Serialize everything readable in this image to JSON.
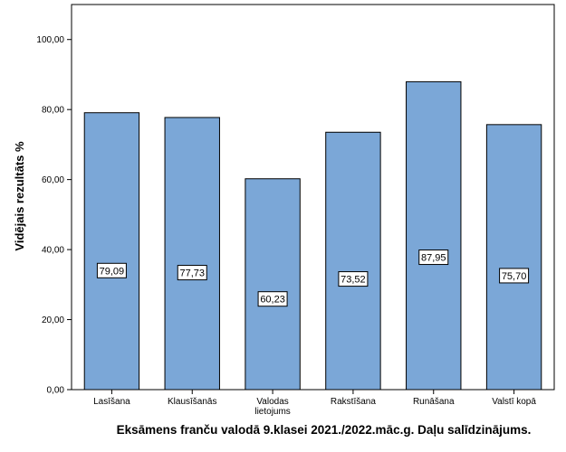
{
  "chart_data": {
    "type": "bar",
    "categories": [
      [
        "Lasīšana"
      ],
      [
        "Klausīšanās"
      ],
      [
        "Valodas",
        "lietojums"
      ],
      [
        "Rakstīšana"
      ],
      [
        "Runāšana"
      ],
      [
        "Valstī kopā"
      ]
    ],
    "values": [
      79.09,
      77.73,
      60.23,
      73.52,
      87.95,
      75.7
    ],
    "data_labels": [
      "79,09",
      "77,73",
      "60,23",
      "73,52",
      "87,95",
      "75,70"
    ],
    "xlabel": "Eksāmens franču valodā 9.klasei 2021./2022.māc.g. Daļu salīdzinājums.",
    "ylabel": "Vidējais rezultāts %",
    "ylim": [
      0,
      110
    ],
    "yticks": [
      0,
      20,
      40,
      60,
      80,
      100
    ],
    "ytick_labels": [
      "0,00",
      "20,00",
      "40,00",
      "60,00",
      "80,00",
      "100,00"
    ],
    "bar_color": "#7ba7d7",
    "grid": false,
    "legend": "none"
  }
}
